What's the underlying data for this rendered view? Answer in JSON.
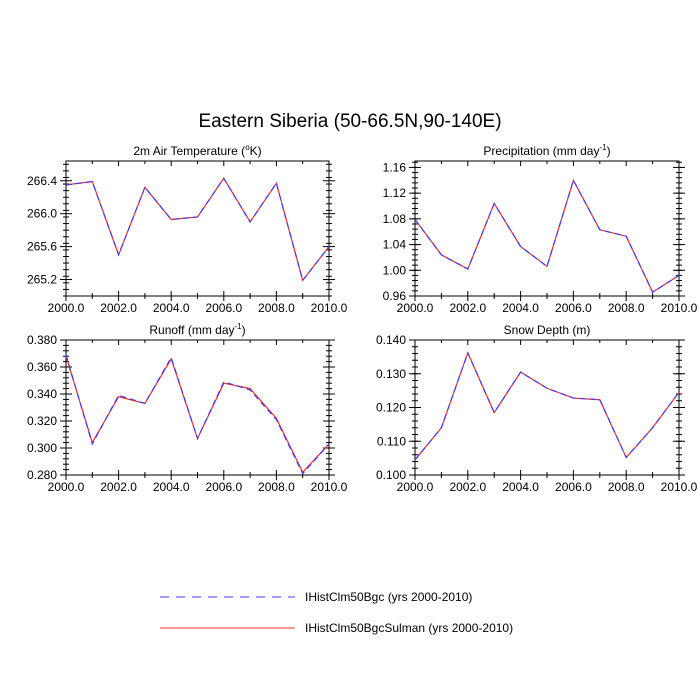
{
  "figure": {
    "title": "Eastern Siberia (50-66.5N,90-140E)",
    "line_colors": {
      "series_1": "#3b3bff",
      "series_2": "#ff2a2a"
    }
  },
  "legend": [
    {
      "label": "IHistClm50Bgc (yrs 2000-2010)",
      "color": "#3b3bff",
      "style": "dashed"
    },
    {
      "label": "IHistClm50BgcSulman (yrs 2000-2010)",
      "color": "#ff2a2a",
      "style": "solid"
    }
  ],
  "chart_data": [
    {
      "type": "line",
      "title_main": "2m Air Temperature (",
      "title_sup": "o",
      "title_tail": "K)",
      "x": [
        2000,
        2001,
        2002,
        2003,
        2004,
        2005,
        2006,
        2007,
        2008,
        2009,
        2010
      ],
      "series": [
        {
          "name": "IHistClm50Bgc (yrs 2000-2010)",
          "values": [
            266.35,
            266.39,
            265.5,
            266.32,
            265.93,
            265.96,
            266.43,
            265.9,
            266.37,
            265.19,
            265.6
          ]
        },
        {
          "name": "IHistClm50BgcSulman (yrs 2000-2010)",
          "values": [
            266.35,
            266.39,
            265.5,
            266.32,
            265.93,
            265.96,
            266.43,
            265.9,
            266.37,
            265.19,
            265.6
          ]
        }
      ],
      "xlim": [
        2000,
        2010
      ],
      "ylim": [
        265.0,
        266.64
      ],
      "xticks": [
        2000,
        2002,
        2004,
        2006,
        2008,
        2010
      ],
      "xtick_labels": [
        "2000.0",
        "2002.0",
        "2004.0",
        "2006.0",
        "2008.0",
        "2010.0"
      ],
      "yticks": [
        265.2,
        265.6,
        266.0,
        266.4
      ],
      "ytick_labels": [
        "265.2",
        "265.6",
        "266.0",
        "266.4"
      ],
      "yminor": 0.08
    },
    {
      "type": "line",
      "title_main": "Precipitation (mm day",
      "title_sup": "-1",
      "title_tail": ")",
      "x": [
        2000,
        2001,
        2002,
        2003,
        2004,
        2005,
        2006,
        2007,
        2008,
        2009,
        2010
      ],
      "series": [
        {
          "name": "IHistClm50Bgc (yrs 2000-2010)",
          "values": [
            1.079,
            1.024,
            1.002,
            1.104,
            1.037,
            1.006,
            1.14,
            1.063,
            1.053,
            0.966,
            0.992
          ]
        },
        {
          "name": "IHistClm50BgcSulman (yrs 2000-2010)",
          "values": [
            1.079,
            1.024,
            1.002,
            1.104,
            1.037,
            1.006,
            1.14,
            1.063,
            1.053,
            0.966,
            0.992
          ]
        }
      ],
      "xlim": [
        2000,
        2010
      ],
      "ylim": [
        0.96,
        1.17
      ],
      "xticks": [
        2000,
        2002,
        2004,
        2006,
        2008,
        2010
      ],
      "xtick_labels": [
        "2000.0",
        "2002.0",
        "2004.0",
        "2006.0",
        "2008.0",
        "2010.0"
      ],
      "yticks": [
        0.96,
        1.0,
        1.04,
        1.08,
        1.12,
        1.16
      ],
      "ytick_labels": [
        "0.96",
        "1.00",
        "1.04",
        "1.08",
        "1.12",
        "1.16"
      ],
      "yminor": 0.008
    },
    {
      "type": "line",
      "title_main": "Runoff (mm day",
      "title_sup": "-1",
      "title_tail": ")",
      "x": [
        2000,
        2001,
        2002,
        2003,
        2004,
        2005,
        2006,
        2007,
        2008,
        2009,
        2010
      ],
      "series": [
        {
          "name": "IHistClm50Bgc (yrs 2000-2010)",
          "values": [
            0.369,
            0.303,
            0.339,
            0.333,
            0.367,
            0.307,
            0.349,
            0.343,
            0.321,
            0.281,
            0.303
          ]
        },
        {
          "name": "IHistClm50BgcSulman (yrs 2000-2010)",
          "values": [
            0.368,
            0.304,
            0.338,
            0.333,
            0.366,
            0.307,
            0.348,
            0.344,
            0.322,
            0.282,
            0.303
          ]
        }
      ],
      "xlim": [
        2000,
        2010
      ],
      "ylim": [
        0.28,
        0.38
      ],
      "xticks": [
        2000,
        2002,
        2004,
        2006,
        2008,
        2010
      ],
      "xtick_labels": [
        "2000.0",
        "2002.0",
        "2004.0",
        "2006.0",
        "2008.0",
        "2010.0"
      ],
      "yticks": [
        0.28,
        0.3,
        0.32,
        0.34,
        0.36,
        0.38
      ],
      "ytick_labels": [
        "0.280",
        "0.300",
        "0.320",
        "0.340",
        "0.360",
        "0.380"
      ],
      "yminor": 0.004
    },
    {
      "type": "line",
      "title_main": "Snow Depth (m)",
      "title_sup": "",
      "title_tail": "",
      "x": [
        2000,
        2001,
        2002,
        2003,
        2004,
        2005,
        2006,
        2007,
        2008,
        2009,
        2010
      ],
      "series": [
        {
          "name": "IHistClm50Bgc (yrs 2000-2010)",
          "values": [
            0.1045,
            0.114,
            0.1362,
            0.1185,
            0.1305,
            0.1257,
            0.1228,
            0.1223,
            0.1052,
            0.114,
            0.1245
          ]
        },
        {
          "name": "IHistClm50BgcSulman (yrs 2000-2010)",
          "values": [
            0.1045,
            0.114,
            0.1362,
            0.1185,
            0.1305,
            0.1257,
            0.1228,
            0.1223,
            0.1052,
            0.114,
            0.1245
          ]
        }
      ],
      "xlim": [
        2000,
        2010
      ],
      "ylim": [
        0.1,
        0.14
      ],
      "xticks": [
        2000,
        2002,
        2004,
        2006,
        2008,
        2010
      ],
      "xtick_labels": [
        "2000.0",
        "2002.0",
        "2004.0",
        "2006.0",
        "2008.0",
        "2010.0"
      ],
      "yticks": [
        0.1,
        0.11,
        0.12,
        0.13,
        0.14
      ],
      "ytick_labels": [
        "0.100",
        "0.110",
        "0.120",
        "0.130",
        "0.140"
      ],
      "yminor": 0.002
    }
  ]
}
